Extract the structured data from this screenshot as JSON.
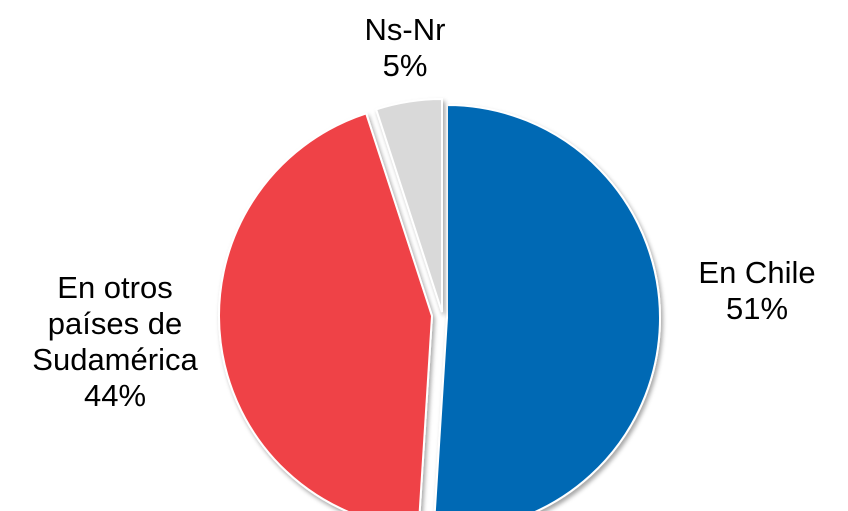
{
  "chart_data": {
    "type": "pie",
    "slices": [
      {
        "label_lines": [
          "En Chile",
          "51%"
        ],
        "value": 51,
        "color": "#0069B4"
      },
      {
        "label_lines": [
          "En otros",
          "países de",
          "Sudamérica",
          "44%"
        ],
        "value": 44,
        "color": "#EF4347"
      },
      {
        "label_lines": [
          "Ns-Nr",
          "5%"
        ],
        "value": 5,
        "color": "#D9D9D9"
      }
    ],
    "exploded": true,
    "legend": "none"
  }
}
